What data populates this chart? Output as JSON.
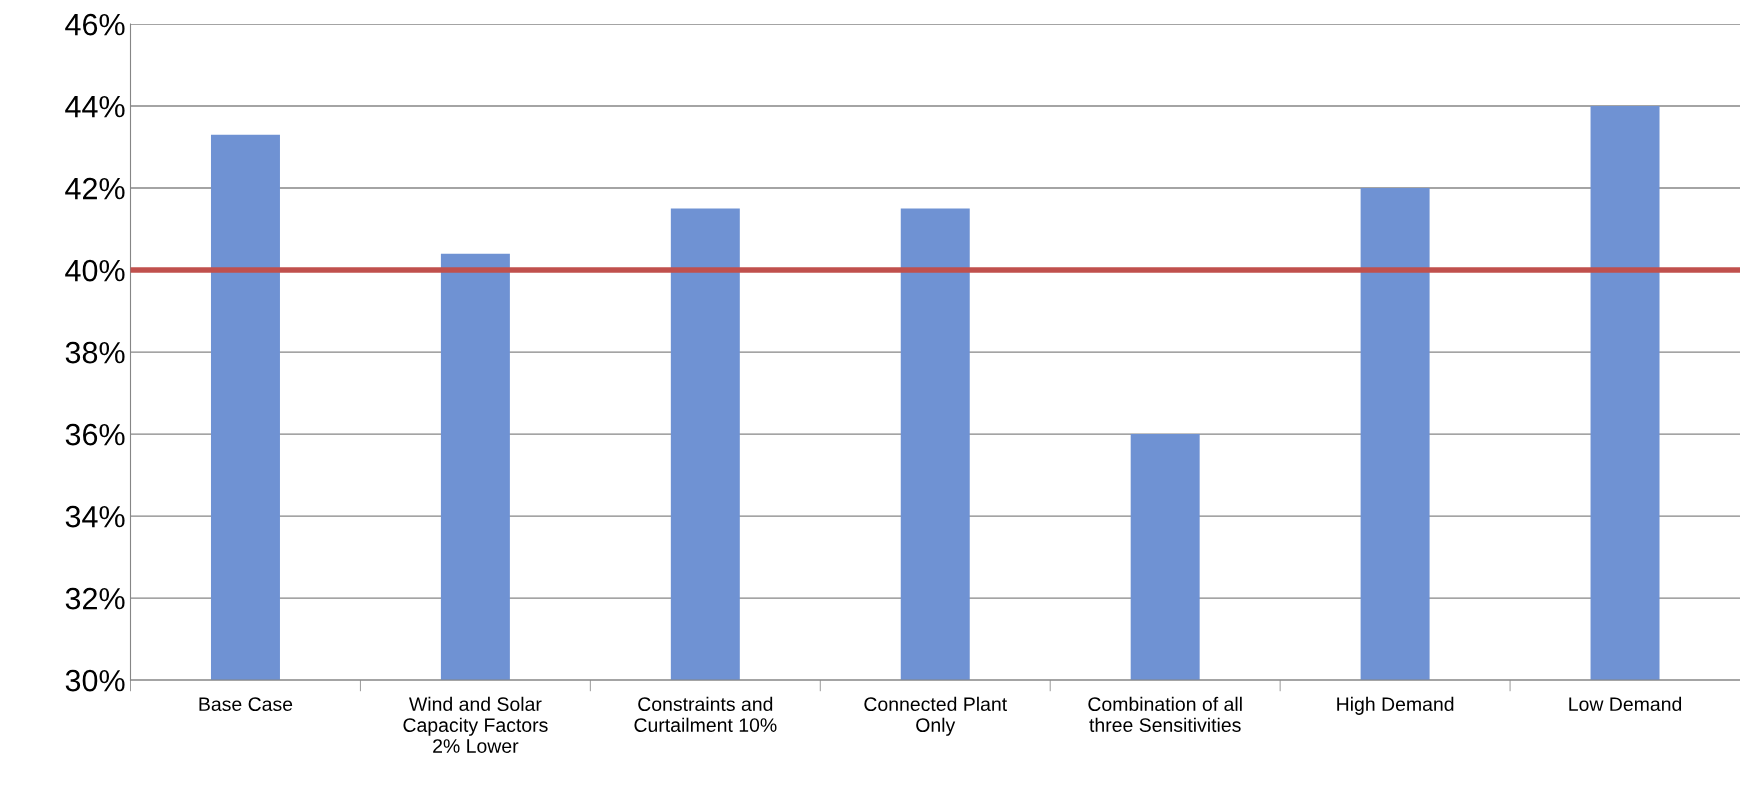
{
  "chart_data": {
    "type": "bar",
    "categories": [
      "Base Case",
      "Wind and Solar\nCapacity Factors\n2% Lower",
      "Constraints and\nCurtailment 10%",
      "Connected Plant\nOnly",
      "Combination of all\nthree Sensitivities",
      "High Demand",
      "Low Demand"
    ],
    "values": [
      43.3,
      40.4,
      41.5,
      41.5,
      36.0,
      42.0,
      44.0
    ],
    "color": "#6f92d3",
    "ylim": [
      30,
      46
    ],
    "yticks": [
      {
        "value": 30,
        "label": "30%"
      },
      {
        "value": 32,
        "label": "32%"
      },
      {
        "value": 34,
        "label": "34%"
      },
      {
        "value": 36,
        "label": "36%"
      },
      {
        "value": 38,
        "label": "38%"
      },
      {
        "value": 40,
        "label": "40%"
      },
      {
        "value": 42,
        "label": "42%"
      },
      {
        "value": 44,
        "label": "44%"
      },
      {
        "value": 46,
        "label": "46%"
      }
    ],
    "grid": "y",
    "ref_lines": [
      {
        "axis": "y",
        "value": 40,
        "label": null,
        "color": "#c0504d"
      }
    ]
  }
}
